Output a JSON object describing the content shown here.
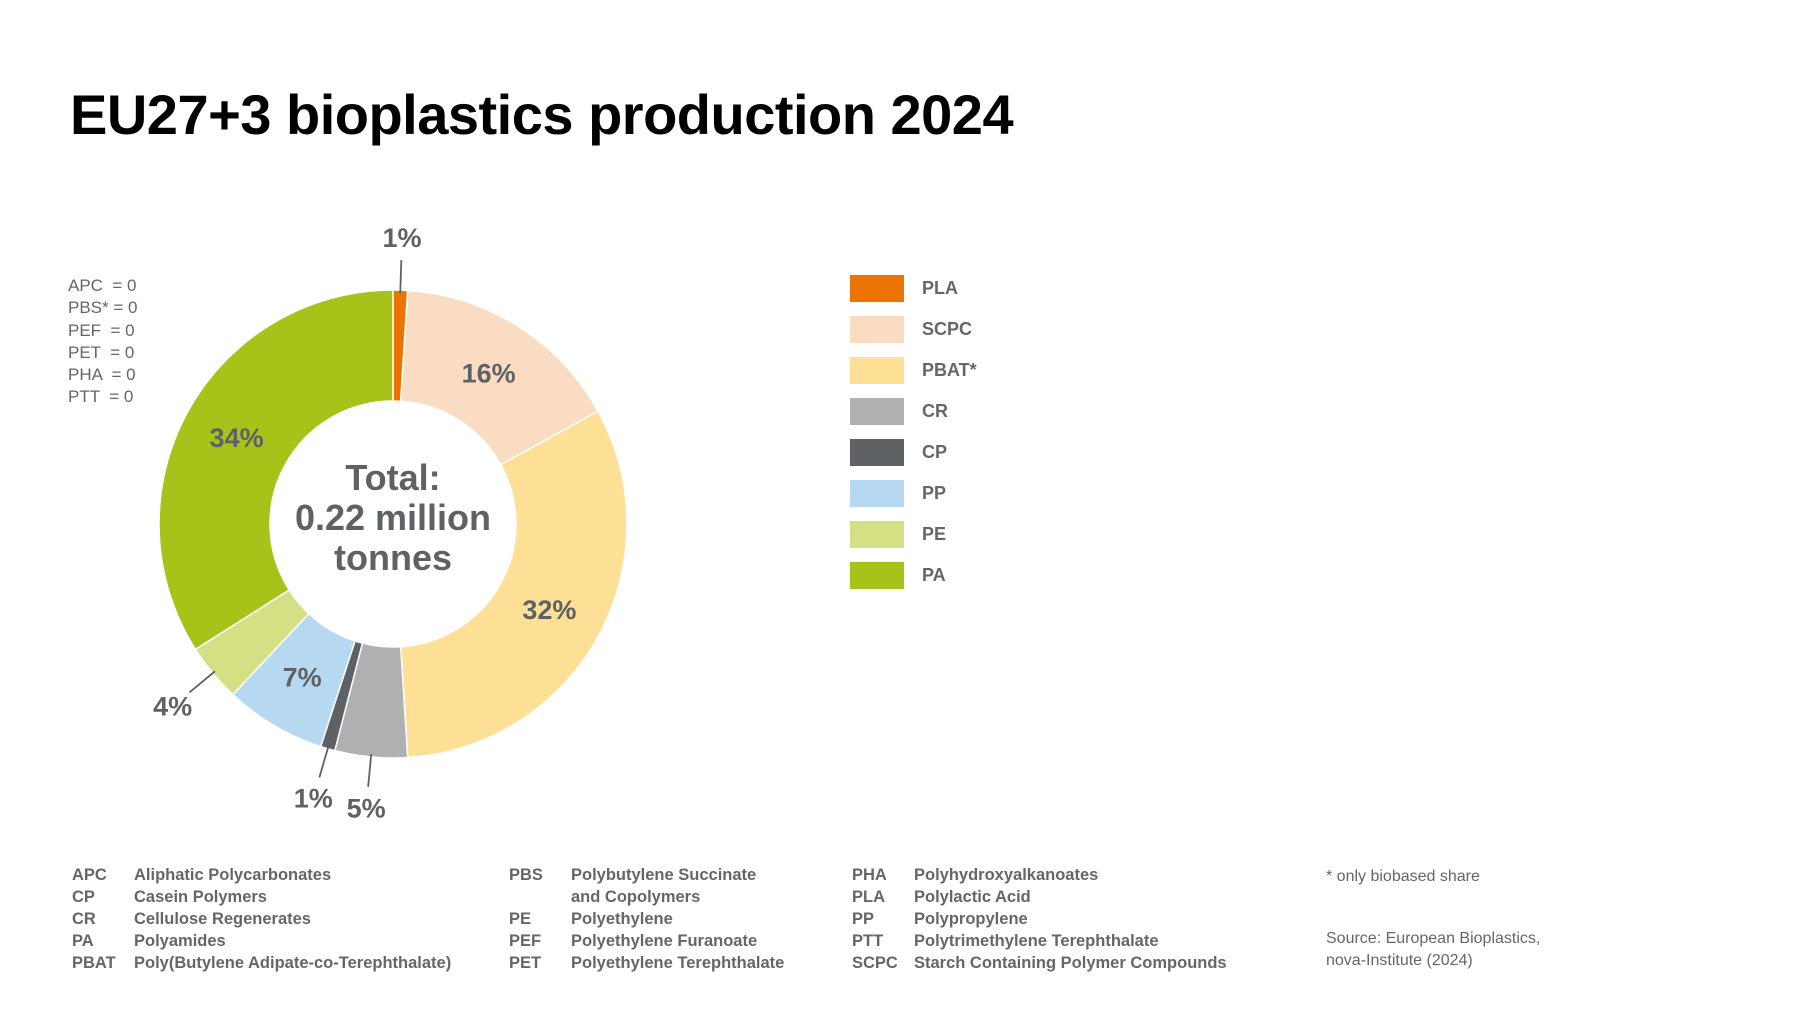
{
  "title": "EU27+3 bioplastics production 2024",
  "chart_data": {
    "type": "pie",
    "variant": "donut",
    "title": "EU27+3 bioplastics production 2024",
    "center_label": [
      "Total:",
      "0.22 million",
      "tonnes"
    ],
    "unit": "%",
    "slices": [
      {
        "name": "PLA",
        "value": 1,
        "label": "1%",
        "color": "#ec7405"
      },
      {
        "name": "SCPC",
        "value": 16,
        "label": "16%",
        "color": "#fadcc3"
      },
      {
        "name": "PBAT*",
        "value": 32,
        "label": "32%",
        "color": "#fddf95"
      },
      {
        "name": "CR",
        "value": 5,
        "label": "5%",
        "color": "#aeb0b2"
      },
      {
        "name": "CP",
        "value": 1,
        "label": "1%",
        "color": "#5e6264"
      },
      {
        "name": "PP",
        "value": 7,
        "label": "7%",
        "color": "#b6d8f0"
      },
      {
        "name": "PE",
        "value": 4,
        "label": "4%",
        "color": "#d5e085"
      },
      {
        "name": "PA",
        "value": 34,
        "label": "34%",
        "color": "#a7c319"
      }
    ],
    "legend_position": "right"
  },
  "zero_values": [
    "APC  = 0",
    "PBS* = 0",
    "PEF  = 0",
    "PET  = 0",
    "PHA  = 0",
    "PTT  = 0"
  ],
  "abbreviations": [
    [
      {
        "code": "APC",
        "name": "Aliphatic Polycarbonates"
      },
      {
        "code": "CP",
        "name": "Casein Polymers"
      },
      {
        "code": "CR",
        "name": "Cellulose Regenerates"
      },
      {
        "code": "PA",
        "name": "Polyamides"
      },
      {
        "code": "PBAT",
        "name": "Poly(Butylene Adipate-co-Terephthalate)"
      }
    ],
    [
      {
        "code": "PBS",
        "name": "Polybutylene Succinate"
      },
      {
        "code": "",
        "name": "and Copolymers"
      },
      {
        "code": "PE",
        "name": "Polyethylene"
      },
      {
        "code": "PEF",
        "name": "Polyethylene Furanoate"
      },
      {
        "code": "PET",
        "name": "Polyethylene Terephthalate"
      }
    ],
    [
      {
        "code": "PHA",
        "name": "Polyhydroxyalkanoates"
      },
      {
        "code": "PLA",
        "name": "Polylactic Acid"
      },
      {
        "code": "PP",
        "name": "Polypropylene"
      },
      {
        "code": "PTT",
        "name": "Polytrimethylene Terephthalate"
      },
      {
        "code": "SCPC",
        "name": "Starch Containing Polymer Compounds"
      }
    ]
  ],
  "notes": {
    "footnote": "* only biobased share",
    "source_line1": "Source: European Bioplastics,",
    "source_line2": "nova-Institute (2024)"
  }
}
